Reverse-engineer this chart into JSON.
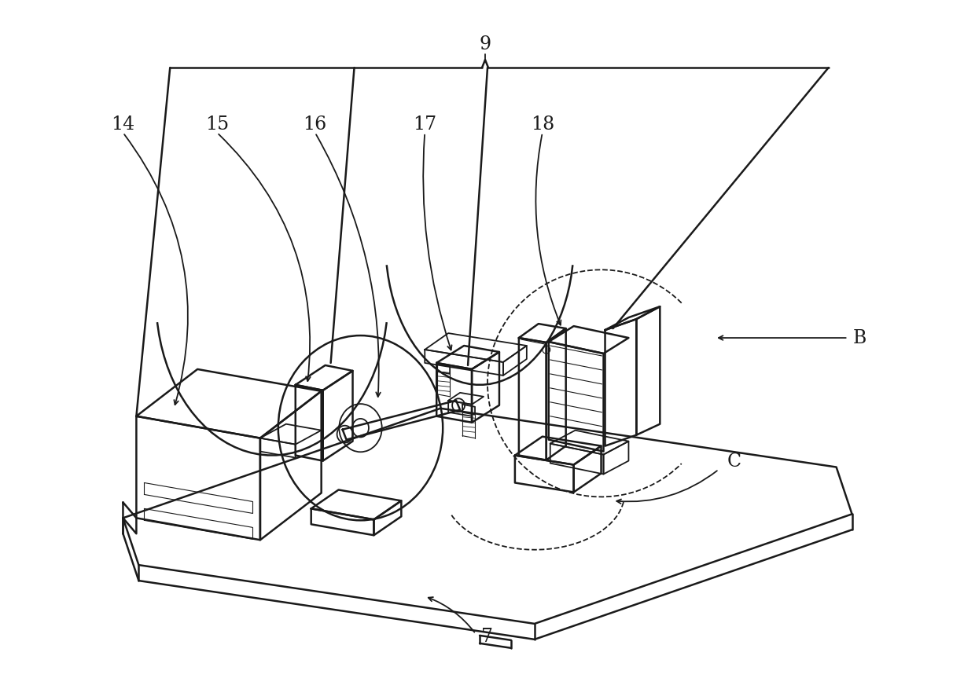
{
  "bg_color": "#ffffff",
  "line_color": "#1a1a1a",
  "lw": 1.3,
  "lw2": 1.8,
  "lw_thin": 0.8,
  "label_fontsize": 17,
  "figsize": [
    12.4,
    8.91
  ],
  "dpi": 100
}
